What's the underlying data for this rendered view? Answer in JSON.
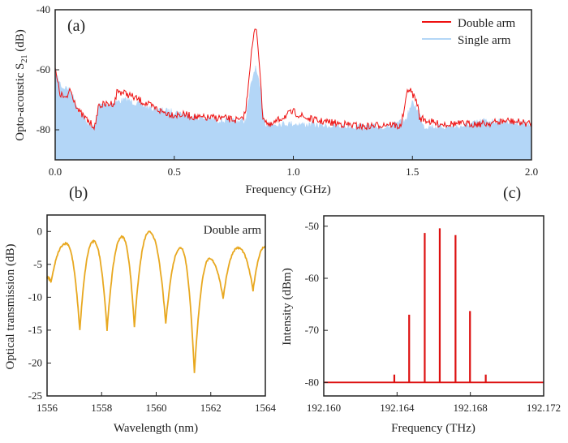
{
  "chart_data": [
    {
      "panel_label": "(a)",
      "type": "area",
      "xlabel": "Frequency (GHz)",
      "ylabel": "Opto-acoustic S",
      "ylabel_sub": "21",
      "ylabel_unit": " (dB)",
      "xlim": [
        0,
        2.0
      ],
      "ylim": [
        -90,
        -40
      ],
      "xticks": [
        "0.0",
        "0.5",
        "1.0",
        "1.5",
        "2.0"
      ],
      "yticks": [
        "-40",
        "-60",
        "-80"
      ],
      "legend_position": "top-right",
      "series": [
        {
          "name": "Double arm",
          "color": "#ee1111",
          "x": [
            0.0,
            0.02,
            0.05,
            0.06,
            0.08,
            0.1,
            0.15,
            0.17,
            0.18,
            0.25,
            0.26,
            0.3,
            0.35,
            0.4,
            0.45,
            0.5,
            0.55,
            0.6,
            0.7,
            0.78,
            0.8,
            0.82,
            0.835,
            0.845,
            0.86,
            0.87,
            0.9,
            0.95,
            1.0,
            1.05,
            1.1,
            1.2,
            1.3,
            1.4,
            1.45,
            1.47,
            1.48,
            1.5,
            1.52,
            1.53,
            1.6,
            1.7,
            1.8,
            1.9,
            2.0
          ],
          "y": [
            -60,
            -68,
            -70,
            -66,
            -70,
            -74,
            -78,
            -79,
            -72,
            -71,
            -67,
            -68,
            -70,
            -72,
            -74,
            -75,
            -75,
            -76,
            -76,
            -77,
            -74,
            -57,
            -48,
            -46,
            -60,
            -75,
            -79,
            -76,
            -74,
            -76,
            -77,
            -78,
            -79,
            -78,
            -79,
            -72,
            -66,
            -68,
            -71,
            -76,
            -78,
            -78,
            -78,
            -77,
            -78
          ]
        },
        {
          "name": "Single arm",
          "color": "#b3d6f7",
          "x": [
            0.0,
            0.03,
            0.05,
            0.07,
            0.1,
            0.15,
            0.17,
            0.18,
            0.3,
            0.4,
            0.5,
            0.6,
            0.7,
            0.8,
            0.82,
            0.84,
            0.86,
            0.88,
            0.95,
            1.0,
            1.2,
            1.4,
            1.47,
            1.5,
            1.52,
            1.55,
            1.7,
            1.8,
            2.0
          ],
          "y": [
            -61,
            -66,
            -66,
            -68,
            -74,
            -79,
            -79,
            -72,
            -70,
            -73,
            -74,
            -76,
            -77,
            -77,
            -66,
            -59,
            -66,
            -78,
            -78,
            -78,
            -79,
            -79,
            -77,
            -71,
            -73,
            -79,
            -79,
            -77,
            -78
          ]
        }
      ]
    },
    {
      "panel_label": "(b)",
      "type": "line",
      "annotation": "Double arm",
      "xlabel": "Wavelength (nm)",
      "ylabel": "Optical transmission (dB)",
      "xlim": [
        1556,
        1564
      ],
      "ylim": [
        -25,
        2.5
      ],
      "xticks": [
        "1556",
        "1558",
        "1560",
        "1562",
        "1564"
      ],
      "yticks": [
        "0",
        "-5",
        "-10",
        "-15",
        "-20",
        "-25"
      ],
      "series": [
        {
          "color": "#e8a820",
          "x": [
            1556.0,
            1556.15,
            1556.7,
            1557.2,
            1557.7,
            1558.2,
            1558.75,
            1559.2,
            1559.75,
            1560.35,
            1560.9,
            1561.4,
            1561.95,
            1562.45,
            1563.0,
            1563.55,
            1564.0
          ],
          "y": [
            -7,
            -7.7,
            -1.8,
            -15,
            -1.5,
            -15,
            -0.8,
            -14.5,
            -0.1,
            -14,
            -2.5,
            -21.5,
            -4.2,
            -10.2,
            -2.5,
            -9,
            -2.3
          ]
        }
      ]
    },
    {
      "panel_label": "(c)",
      "type": "line",
      "xlabel": "Frequency (THz)",
      "ylabel": "Intensity (dBm)",
      "xlim": [
        192.16,
        192.172
      ],
      "ylim": [
        -82.6,
        -48
      ],
      "xticks": [
        "192.160",
        "192.164",
        "192.168",
        "192.172"
      ],
      "yticks": [
        "-50",
        "-60",
        "-70",
        "-80"
      ],
      "baseline": -80,
      "series": [
        {
          "color": "#dd1111",
          "x": [
            192.16385,
            192.16466,
            192.16551,
            192.16633,
            192.16719,
            192.16798,
            192.16884
          ],
          "y": [
            -78.5,
            -67,
            -51.3,
            -50.4,
            -51.7,
            -66.3,
            -78.5
          ]
        }
      ]
    }
  ]
}
